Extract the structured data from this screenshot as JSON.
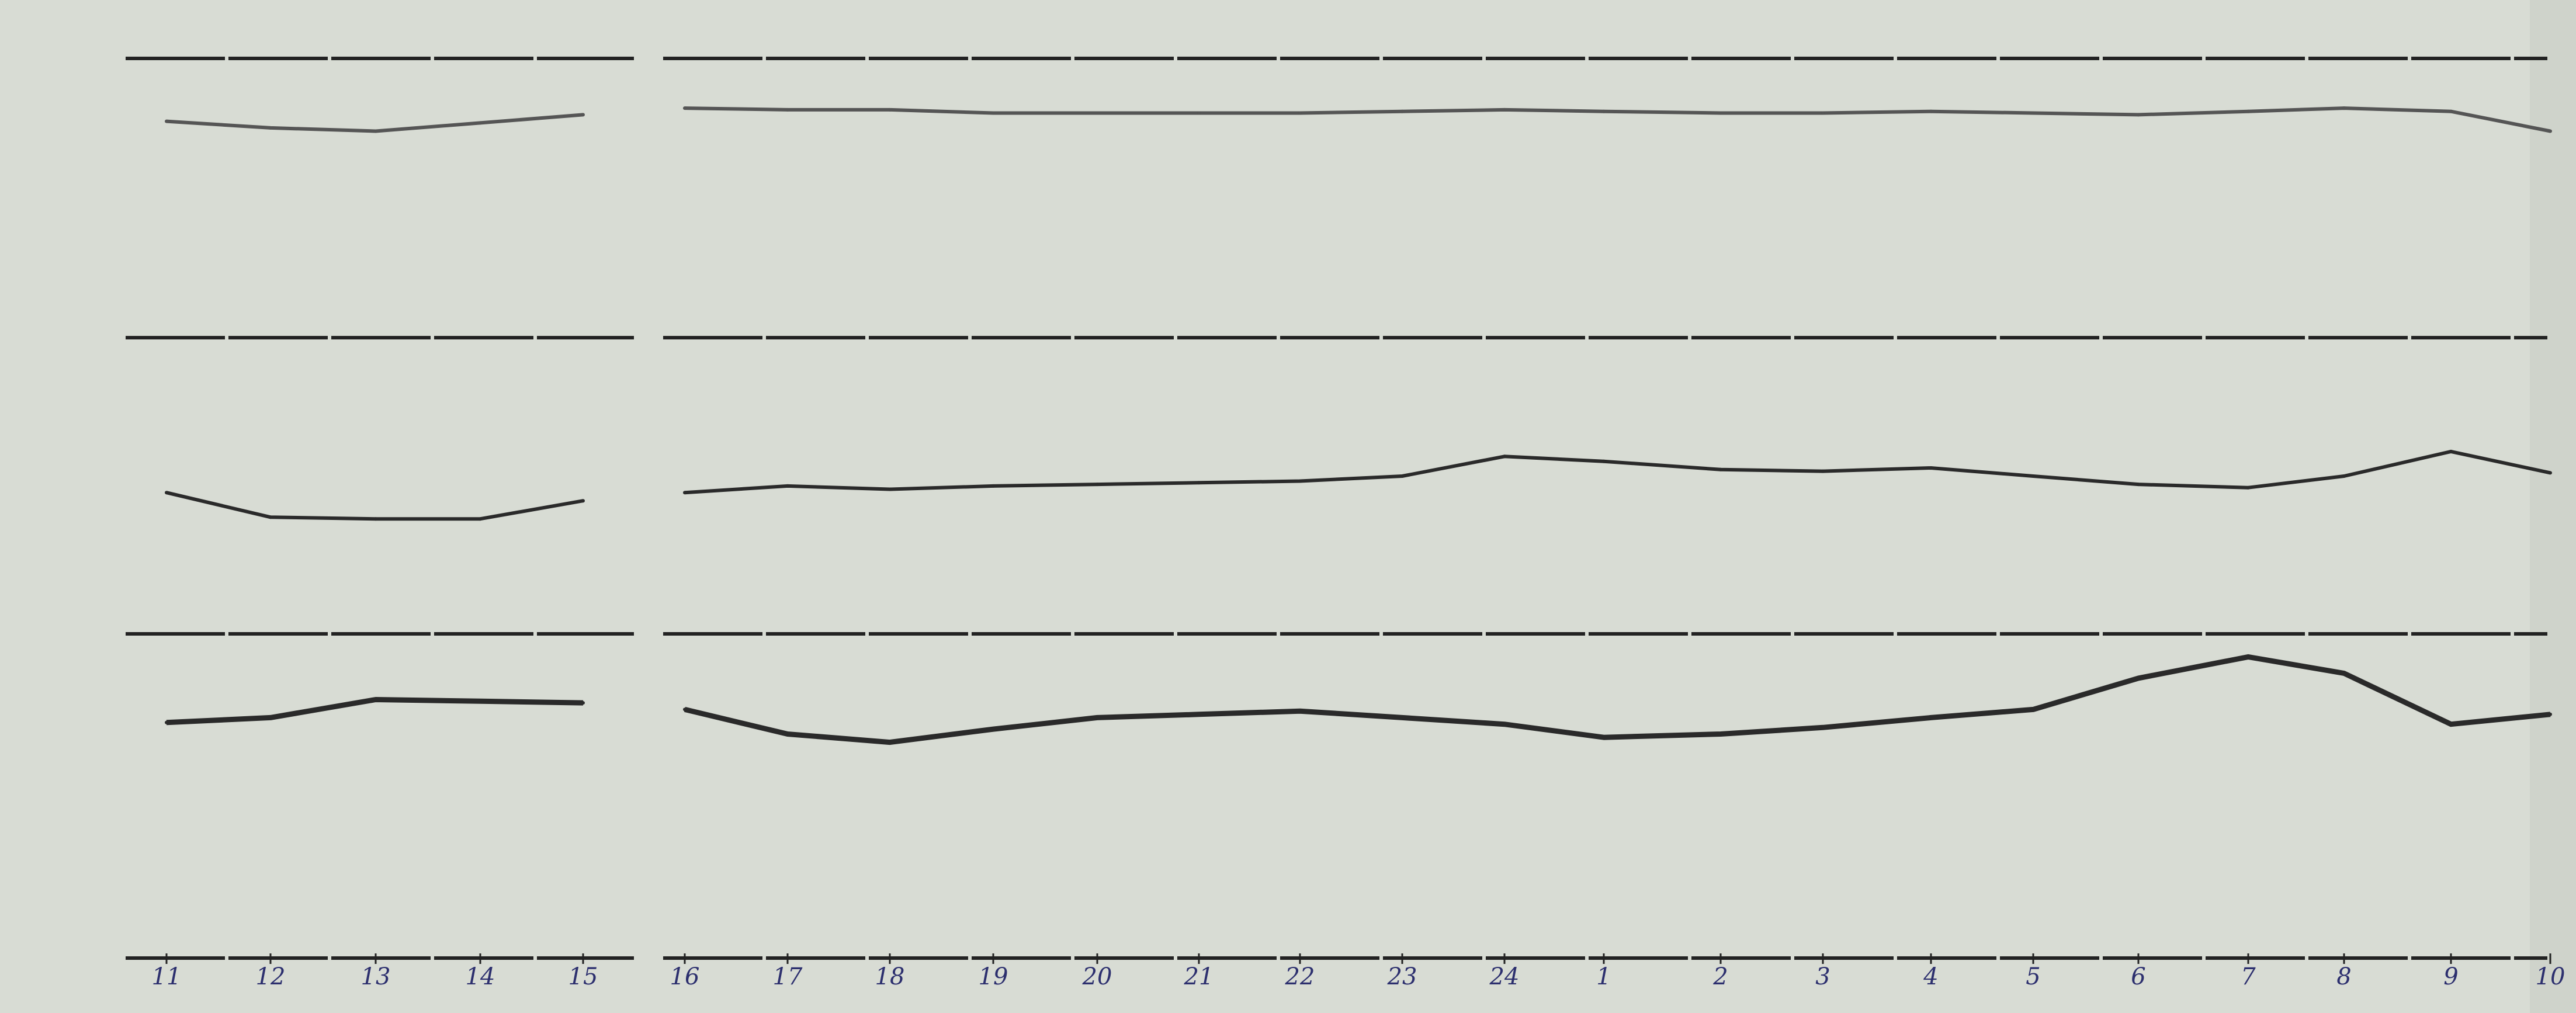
{
  "chart_data": {
    "type": "line",
    "title": "",
    "xlabel": "",
    "ylabel": "",
    "grid": false,
    "categories": [
      "11",
      "12",
      "13",
      "14",
      "15",
      "16",
      "17",
      "18",
      "19",
      "20",
      "21",
      "22",
      "23",
      "24",
      "1",
      "2",
      "3",
      "4",
      "5",
      "6",
      "7",
      "8",
      "9",
      "10"
    ],
    "series": [
      {
        "values": [
          -34,
          -38,
          -40,
          -35,
          -30,
          -26,
          -27,
          -27,
          -29,
          -29,
          -29,
          -29,
          -28,
          -27,
          -28,
          -29,
          -29,
          -28,
          -29,
          -30,
          -28,
          -26,
          -28,
          -40
        ]
      },
      {
        "values": [
          86,
          71,
          70,
          70,
          81,
          86,
          90,
          88,
          90,
          91,
          92,
          93,
          96,
          108,
          105,
          100,
          99,
          101,
          96,
          91,
          89,
          96,
          111,
          98
        ]
      },
      {
        "values": [
          -54,
          -51,
          -40,
          -41,
          -42,
          -46,
          -61,
          -66,
          -58,
          -51,
          -49,
          -47,
          -51,
          -55,
          -63,
          -61,
          -57,
          -51,
          -46,
          -27,
          -14,
          -24,
          -55,
          -49
        ]
      }
    ],
    "colors": {
      "paper": "#d8dcd4",
      "trace": "#2a2a2a",
      "labels": "#2c2f6e"
    }
  }
}
